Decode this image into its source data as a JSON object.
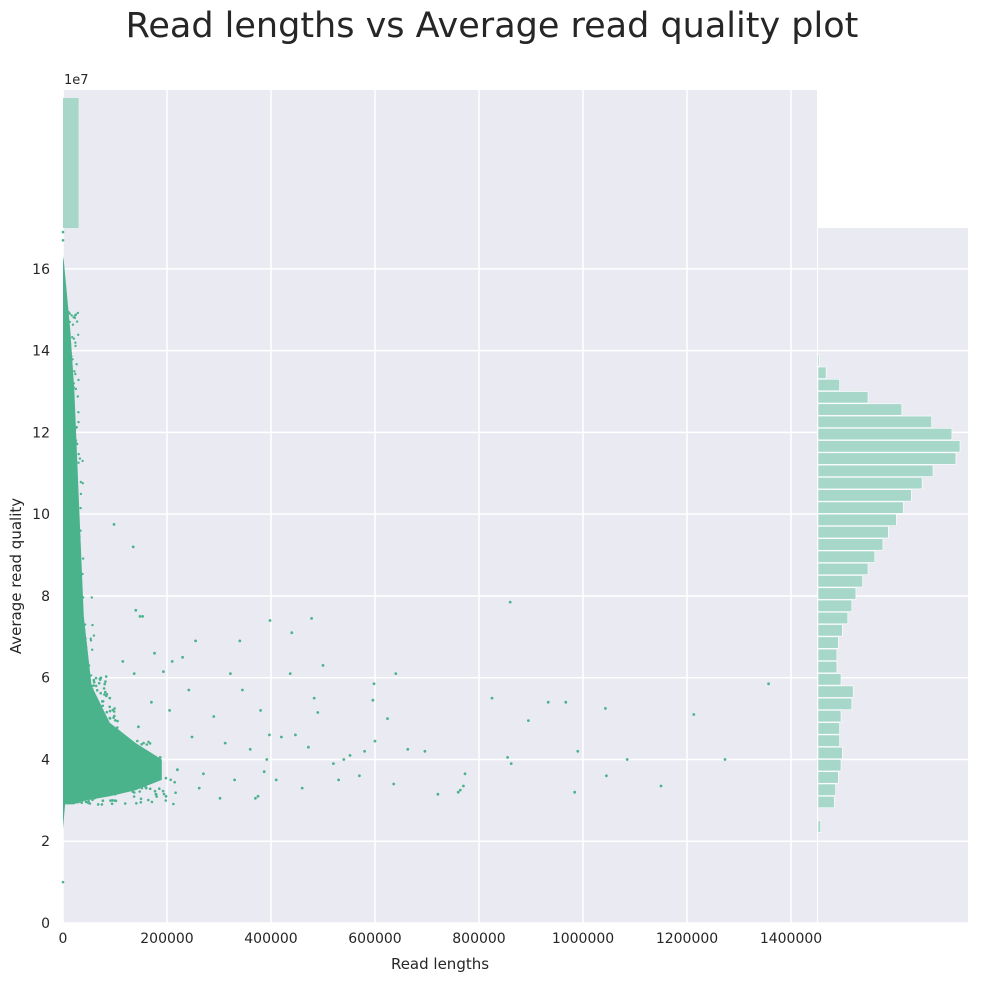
{
  "chart_data": {
    "type": "scatter",
    "title": "Read lengths vs Average read quality plot",
    "xlabel": "Read lengths",
    "ylabel": "Average read quality",
    "xlim": [
      0,
      1450000
    ],
    "ylim": [
      0,
      17
    ],
    "x_ticks": [
      0,
      200000,
      400000,
      600000,
      800000,
      1000000,
      1200000,
      1400000
    ],
    "x_tick_labels": [
      "0",
      "200000",
      "400000",
      "600000",
      "800000",
      "1000000",
      "1200000",
      "1400000"
    ],
    "y_ticks": [
      0,
      2,
      4,
      6,
      8,
      10,
      12,
      14,
      16
    ],
    "y_tick_labels": [
      "0",
      "2",
      "4",
      "6",
      "8",
      "10",
      "12",
      "14",
      "16"
    ],
    "top_histogram_offset_label": "1e7",
    "grid": true,
    "point_color": "#4bb38c",
    "histogram_color": "#a6d7c9",
    "background_color": "#eaeaf2",
    "points": [
      [
        860000,
        7.85
      ],
      [
        1357000,
        5.85
      ],
      [
        1273000,
        4.0
      ],
      [
        1213000,
        5.1
      ],
      [
        1150000,
        3.35
      ],
      [
        1085000,
        4.0
      ],
      [
        1045000,
        3.6
      ],
      [
        1043000,
        5.25
      ],
      [
        990000,
        4.2
      ],
      [
        984000,
        3.2
      ],
      [
        967000,
        5.4
      ],
      [
        933000,
        5.4
      ],
      [
        895000,
        4.95
      ],
      [
        862000,
        3.9
      ],
      [
        855000,
        4.05
      ],
      [
        825000,
        5.5
      ],
      [
        773000,
        3.65
      ],
      [
        770000,
        3.35
      ],
      [
        764000,
        3.25
      ],
      [
        760000,
        3.2
      ],
      [
        721000,
        3.15
      ],
      [
        696000,
        4.2
      ],
      [
        663000,
        4.25
      ],
      [
        640000,
        6.1
      ],
      [
        636000,
        3.4
      ],
      [
        624000,
        5.0
      ],
      [
        600000,
        4.45
      ],
      [
        598000,
        5.85
      ],
      [
        596000,
        5.45
      ],
      [
        580000,
        4.2
      ],
      [
        570000,
        3.6
      ],
      [
        552000,
        4.1
      ],
      [
        540000,
        4.0
      ],
      [
        530000,
        3.5
      ],
      [
        520000,
        3.9
      ],
      [
        500000,
        6.3
      ],
      [
        490000,
        5.15
      ],
      [
        483000,
        5.5
      ],
      [
        478000,
        7.45
      ],
      [
        472000,
        4.3
      ],
      [
        460000,
        3.3
      ],
      [
        447000,
        4.6
      ],
      [
        440000,
        7.1
      ],
      [
        437000,
        6.1
      ],
      [
        420000,
        4.55
      ],
      [
        410000,
        3.5
      ],
      [
        398000,
        7.4
      ],
      [
        397000,
        4.6
      ],
      [
        392000,
        4.0
      ],
      [
        387000,
        3.7
      ],
      [
        380000,
        5.2
      ],
      [
        375000,
        3.1
      ],
      [
        370000,
        3.05
      ],
      [
        360000,
        4.25
      ],
      [
        345000,
        5.7
      ],
      [
        340000,
        6.9
      ],
      [
        330000,
        3.5
      ],
      [
        322000,
        6.1
      ],
      [
        312000,
        4.4
      ],
      [
        302000,
        3.05
      ],
      [
        290000,
        5.05
      ],
      [
        270000,
        3.65
      ],
      [
        262000,
        3.3
      ],
      [
        255000,
        6.9
      ],
      [
        248000,
        4.55
      ],
      [
        242000,
        5.7
      ],
      [
        230000,
        6.5
      ],
      [
        220000,
        3.75
      ],
      [
        210000,
        6.4
      ],
      [
        205000,
        5.2
      ],
      [
        198000,
        3.1
      ],
      [
        193000,
        6.15
      ],
      [
        187000,
        4.05
      ],
      [
        176000,
        6.6
      ],
      [
        170000,
        5.4
      ],
      [
        160000,
        3.3
      ],
      [
        153000,
        7.5
      ],
      [
        148000,
        7.5
      ],
      [
        145000,
        4.8
      ],
      [
        140000,
        7.65
      ],
      [
        137000,
        6.1
      ],
      [
        135000,
        9.2
      ],
      [
        128000,
        3.9
      ],
      [
        122000,
        3.45
      ],
      [
        115000,
        6.4
      ],
      [
        110000,
        4.1
      ],
      [
        105000,
        3.6
      ],
      [
        98000,
        9.75
      ],
      [
        95000,
        3.0
      ],
      [
        90000,
        5.5
      ]
    ],
    "right_histogram": {
      "bin_starts": [
        2.2,
        2.5,
        2.8,
        3.1,
        3.4,
        3.7,
        4.0,
        4.3,
        4.6,
        4.9,
        5.2,
        5.5,
        5.8,
        6.1,
        6.4,
        6.7,
        7.0,
        7.3,
        7.6,
        7.9,
        8.2,
        8.5,
        8.8,
        9.1,
        9.4,
        9.7,
        10.0,
        10.3,
        10.6,
        10.9,
        11.2,
        11.5,
        11.8,
        12.1,
        12.4,
        12.7,
        13.0,
        13.3,
        13.6,
        13.9
      ],
      "bin_width": 0.3,
      "counts": [
        2,
        0,
        12,
        13,
        15,
        17,
        18,
        16,
        16,
        17,
        25,
        26,
        17,
        14,
        14,
        15,
        18,
        22,
        25,
        28,
        33,
        37,
        42,
        48,
        52,
        58,
        63,
        69,
        77,
        85,
        102,
        105,
        99,
        84,
        62,
        37,
        16,
        6,
        1,
        0
      ]
    },
    "top_histogram": {
      "bin_edges": [
        0,
        30000
      ],
      "note_values_scale": "1e7",
      "counts": [
        1
      ]
    }
  }
}
